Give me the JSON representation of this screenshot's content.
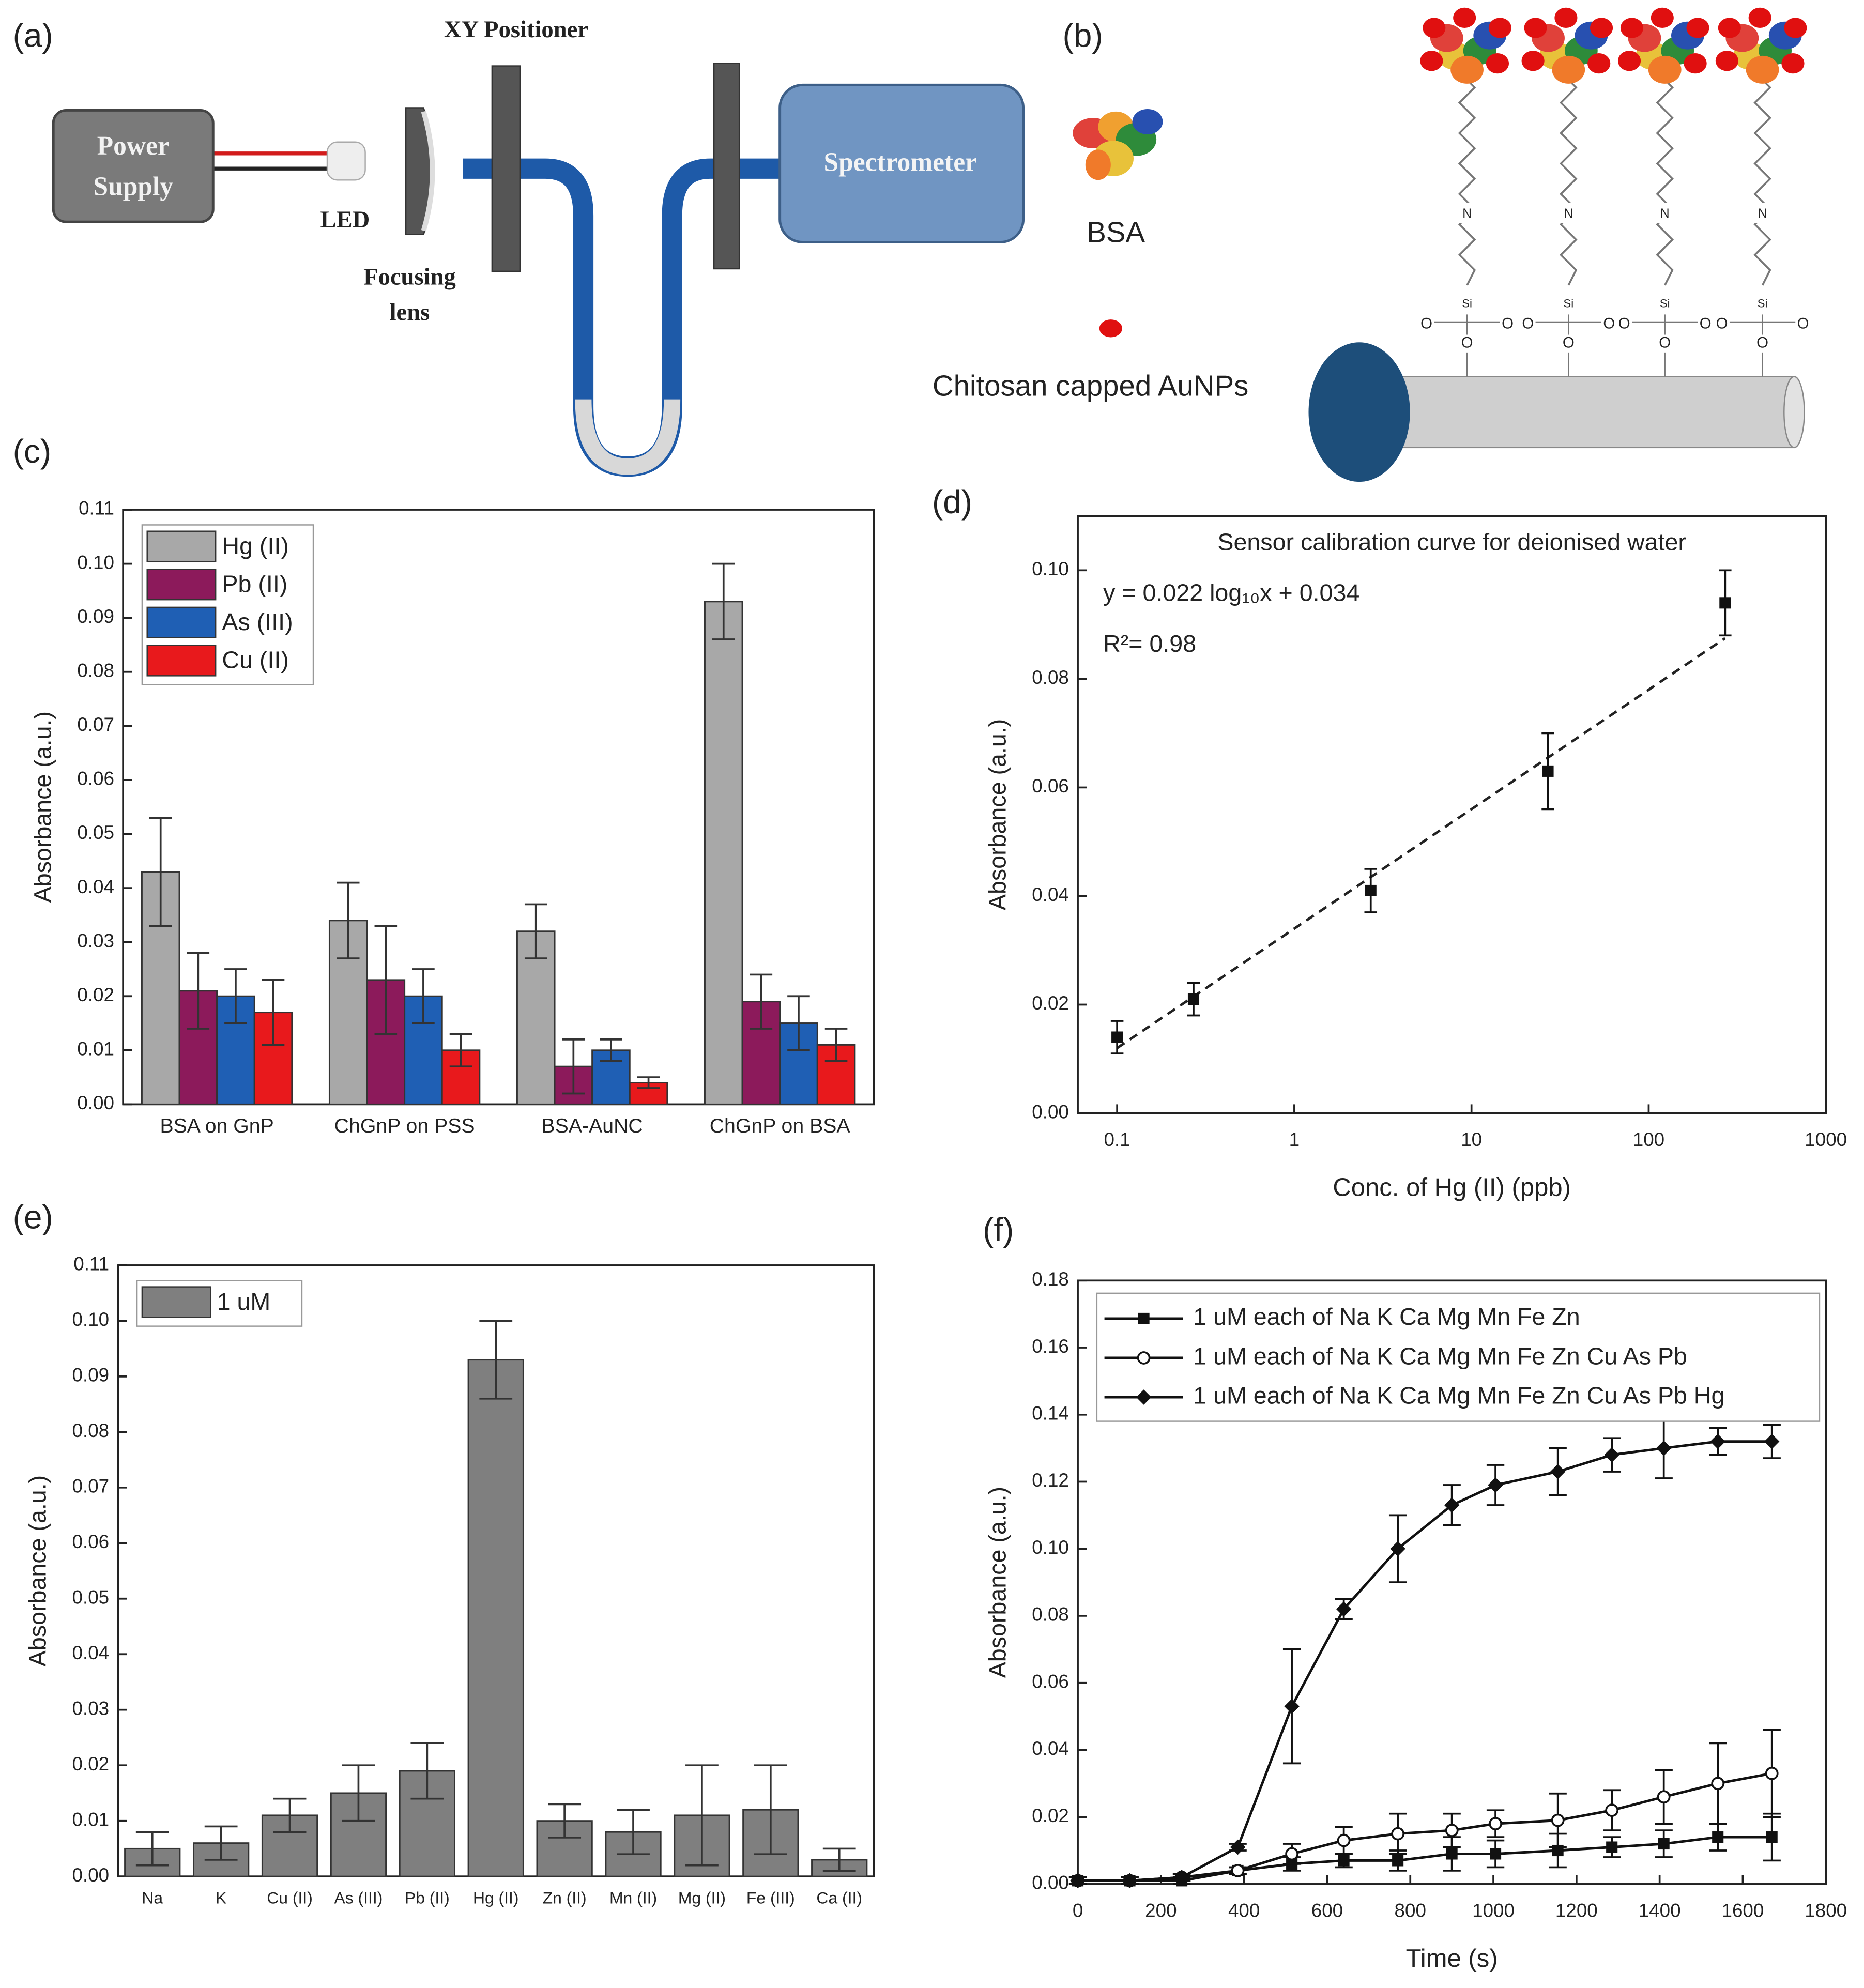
{
  "diagram_a": {
    "panel_label": "(a)",
    "power_supply": [
      "Power",
      "Supply"
    ],
    "led": "LED",
    "focusing_lens": [
      "Focusing",
      "lens"
    ],
    "xy_positioner": "XY Positioner",
    "spectrometer": "Spectrometer"
  },
  "diagram_b": {
    "panel_label": "(b)",
    "bsa": "BSA",
    "aunps": "Chitosan capped AuNPs",
    "atom_labels": {
      "nitrogen": "N",
      "silicon": "Si",
      "oxygen": "O"
    }
  },
  "chart_data": [
    {
      "type": "bar",
      "panel_label": "(c)",
      "ylabel": "Absorbance (a.u.)",
      "categories": [
        "BSA on GnP",
        "ChGnP on PSS",
        "BSA-AuNC",
        "ChGnP on BSA"
      ],
      "series": [
        {
          "name": "Hg (II)",
          "color": "#a8a8a8",
          "values": [
            0.043,
            0.034,
            0.032,
            0.093
          ],
          "errors": [
            0.01,
            0.007,
            0.005,
            0.007
          ]
        },
        {
          "name": "Pb (II)",
          "color": "#8c1a5b",
          "values": [
            0.021,
            0.023,
            0.007,
            0.019
          ],
          "errors": [
            0.007,
            0.01,
            0.005,
            0.005
          ]
        },
        {
          "name": "As (III)",
          "color": "#1f5fb4",
          "values": [
            0.02,
            0.02,
            0.01,
            0.015
          ],
          "errors": [
            0.005,
            0.005,
            0.002,
            0.005
          ]
        },
        {
          "name": "Cu (II)",
          "color": "#e8191c",
          "values": [
            0.017,
            0.01,
            0.004,
            0.011
          ],
          "errors": [
            0.006,
            0.003,
            0.001,
            0.003
          ]
        }
      ],
      "ylim": [
        0,
        0.11
      ],
      "yticks": [
        {
          "value": 0,
          "label": "0.00"
        },
        {
          "value": 0.01,
          "label": "0.01"
        },
        {
          "value": 0.02,
          "label": "0.02"
        },
        {
          "value": 0.03,
          "label": "0.03"
        },
        {
          "value": 0.04,
          "label": "0.04"
        },
        {
          "value": 0.05,
          "label": "0.05"
        },
        {
          "value": 0.06,
          "label": "0.06"
        },
        {
          "value": 0.07,
          "label": "0.07"
        },
        {
          "value": 0.08,
          "label": "0.08"
        },
        {
          "value": 0.09,
          "label": "0.09"
        },
        {
          "value": 0.1,
          "label": "0.10"
        },
        {
          "value": 0.11,
          "label": "0.11"
        }
      ],
      "legend": "upper left"
    },
    {
      "type": "scatter",
      "panel_label": "(d)",
      "title": "Sensor calibration curve for deionised water",
      "annotations": [
        "y = 0.022 log₁₀x + 0.034",
        "R²= 0.98"
      ],
      "xlabel": "Conc. of Hg (II) (ppb)",
      "ylabel": "Absorbance (a.u.)",
      "x": [
        0.1,
        0.27,
        2.7,
        27,
        270
      ],
      "values": [
        0.014,
        0.021,
        0.041,
        0.063,
        0.094
      ],
      "errors": [
        0.003,
        0.003,
        0.004,
        0.007,
        0.006
      ],
      "color": "#111111",
      "marker": "square",
      "fit": {
        "slope": 0.022,
        "intercept": 0.034,
        "style": "dashed"
      },
      "xscale": "log",
      "xlim": [
        0.06,
        1000
      ],
      "xticks": [
        0.1,
        1,
        10,
        100,
        1000
      ],
      "ylim": [
        0,
        0.11
      ],
      "yticks": [
        {
          "value": 0,
          "label": "0.00"
        },
        {
          "value": 0.02,
          "label": "0.02"
        },
        {
          "value": 0.04,
          "label": "0.04"
        },
        {
          "value": 0.06,
          "label": "0.06"
        },
        {
          "value": 0.08,
          "label": "0.08"
        },
        {
          "value": 0.1,
          "label": "0.10"
        }
      ]
    },
    {
      "type": "bar",
      "panel_label": "(e)",
      "ylabel": "Absorbance (a.u.)",
      "categories": [
        "Na",
        "K",
        "Cu (II)",
        "As (III)",
        "Pb (II)",
        "Hg (II)",
        "Zn (II)",
        "Mn (II)",
        "Mg (II)",
        "Fe (III)",
        "Ca (II)"
      ],
      "series": [
        {
          "name": "1 uM",
          "color": "#7f7f7f",
          "values": [
            0.005,
            0.006,
            0.011,
            0.015,
            0.019,
            0.093,
            0.01,
            0.008,
            0.011,
            0.012,
            0.003
          ],
          "errors": [
            0.003,
            0.003,
            0.003,
            0.005,
            0.005,
            0.007,
            0.003,
            0.004,
            0.009,
            0.008,
            0.002
          ]
        }
      ],
      "ylim": [
        0,
        0.11
      ],
      "yticks": [
        {
          "value": 0,
          "label": "0.00"
        },
        {
          "value": 0.01,
          "label": "0.01"
        },
        {
          "value": 0.02,
          "label": "0.02"
        },
        {
          "value": 0.03,
          "label": "0.03"
        },
        {
          "value": 0.04,
          "label": "0.04"
        },
        {
          "value": 0.05,
          "label": "0.05"
        },
        {
          "value": 0.06,
          "label": "0.06"
        },
        {
          "value": 0.07,
          "label": "0.07"
        },
        {
          "value": 0.08,
          "label": "0.08"
        },
        {
          "value": 0.09,
          "label": "0.09"
        },
        {
          "value": 0.1,
          "label": "0.10"
        },
        {
          "value": 0.11,
          "label": "0.11"
        }
      ],
      "legend": "upper left"
    },
    {
      "type": "line",
      "panel_label": "(f)",
      "xlabel": "Time (s)",
      "ylabel": "Absorbance (a.u.)",
      "x": [
        0,
        125,
        250,
        385,
        515,
        640,
        770,
        900,
        1005,
        1155,
        1285,
        1410,
        1540,
        1670
      ],
      "series": [
        {
          "name": "1 uM each of Na K Ca Mg Mn Fe Zn",
          "color": "#111111",
          "marker": "square",
          "values": [
            0.001,
            0.001,
            0.001,
            0.004,
            0.006,
            0.007,
            0.007,
            0.009,
            0.009,
            0.01,
            0.011,
            0.012,
            0.014,
            0.014
          ],
          "errors": [
            0.001,
            0.001,
            0.001,
            0.001,
            0.002,
            0.002,
            0.003,
            0.005,
            0.004,
            0.005,
            0.003,
            0.004,
            0.004,
            0.007
          ]
        },
        {
          "name": "1 uM each of Na K Ca Mg Mn Fe Zn Cu As Pb",
          "color": "#111111",
          "marker": "circle-open",
          "values": [
            0.001,
            0.001,
            0.002,
            0.004,
            0.009,
            0.013,
            0.015,
            0.016,
            0.018,
            0.019,
            0.022,
            0.026,
            0.03,
            0.033
          ],
          "errors": [
            0.001,
            0.001,
            0.001,
            0.001,
            0.003,
            0.004,
            0.006,
            0.005,
            0.004,
            0.008,
            0.006,
            0.008,
            0.012,
            0.013
          ]
        },
        {
          "name": "1 uM each of Na K Ca Mg Mn Fe Zn Cu As Pb Hg",
          "color": "#111111",
          "marker": "diamond",
          "values": [
            0.001,
            0.001,
            0.002,
            0.011,
            0.053,
            0.082,
            0.1,
            0.113,
            0.119,
            0.123,
            0.128,
            0.13,
            0.132,
            0.132
          ],
          "errors": [
            0.001,
            0.001,
            0.001,
            0.001,
            0.017,
            0.003,
            0.01,
            0.006,
            0.006,
            0.007,
            0.005,
            0.009,
            0.004,
            0.005
          ]
        }
      ],
      "xlim": [
        0,
        1800
      ],
      "xticks": [
        0,
        200,
        400,
        600,
        800,
        1000,
        1200,
        1400,
        1600,
        1800
      ],
      "ylim": [
        0,
        0.18
      ],
      "yticks": [
        {
          "value": 0,
          "label": "0.00"
        },
        {
          "value": 0.02,
          "label": "0.02"
        },
        {
          "value": 0.04,
          "label": "0.04"
        },
        {
          "value": 0.06,
          "label": "0.06"
        },
        {
          "value": 0.08,
          "label": "0.08"
        },
        {
          "value": 0.1,
          "label": "0.10"
        },
        {
          "value": 0.12,
          "label": "0.12"
        },
        {
          "value": 0.14,
          "label": "0.14"
        },
        {
          "value": 0.16,
          "label": "0.16"
        },
        {
          "value": 0.18,
          "label": "0.18"
        }
      ],
      "legend": "upper left"
    }
  ]
}
